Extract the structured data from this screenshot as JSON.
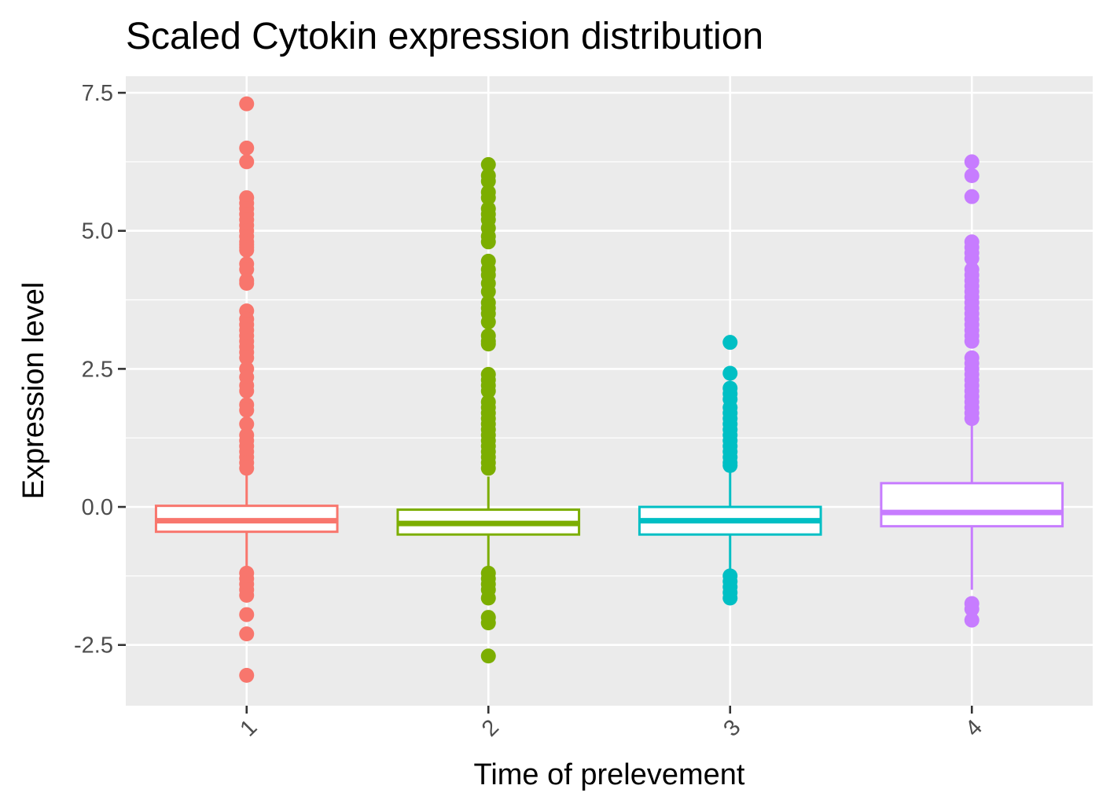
{
  "chart_data": {
    "type": "boxplot",
    "title": "Scaled Cytokin expression distribution",
    "xlabel": "Time of prelevement",
    "ylabel": "Expression level",
    "ylim": [
      -3.6,
      7.8
    ],
    "yticks": [
      -2.5,
      0.0,
      2.5,
      5.0,
      7.5
    ],
    "ytick_labels": [
      "-2.5",
      "0.0",
      "2.5",
      "5.0",
      "7.5"
    ],
    "grid": true,
    "legend": "none",
    "categories": [
      "1",
      "2",
      "3",
      "4"
    ],
    "series": [
      {
        "category": "1",
        "color": "#F8766D",
        "q1": -0.45,
        "median": -0.25,
        "q3": 0.02,
        "whisker_low": -1.1,
        "whisker_high": 0.65,
        "outliers": [
          7.3,
          6.5,
          6.25,
          5.6,
          5.5,
          5.4,
          5.3,
          5.2,
          5.1,
          5.0,
          4.9,
          4.8,
          4.75,
          4.7,
          4.65,
          4.4,
          4.3,
          4.1,
          4.05,
          3.55,
          3.4,
          3.3,
          3.2,
          3.1,
          3.0,
          2.9,
          2.8,
          2.7,
          2.5,
          2.35,
          2.2,
          2.1,
          1.85,
          1.75,
          1.5,
          1.3,
          1.2,
          1.1,
          1.0,
          0.9,
          0.8,
          0.7,
          -1.2,
          -1.3,
          -1.4,
          -1.5,
          -1.6,
          -1.95,
          -2.3,
          -3.05
        ]
      },
      {
        "category": "2",
        "color": "#7CAE00",
        "q1": -0.5,
        "median": -0.3,
        "q3": -0.05,
        "whisker_low": -1.1,
        "whisker_high": 0.55,
        "outliers": [
          6.2,
          6.0,
          5.9,
          5.7,
          5.6,
          5.4,
          5.3,
          5.2,
          5.05,
          4.9,
          4.8,
          4.45,
          4.3,
          4.2,
          4.05,
          3.9,
          3.7,
          3.6,
          3.5,
          3.35,
          3.1,
          3.0,
          2.95,
          2.4,
          2.3,
          2.2,
          2.1,
          1.9,
          1.8,
          1.7,
          1.6,
          1.5,
          1.4,
          1.3,
          1.2,
          1.1,
          1.0,
          0.9,
          0.8,
          0.7,
          -1.2,
          -1.3,
          -1.4,
          -1.5,
          -1.65,
          -2.0,
          -2.1,
          -2.7
        ]
      },
      {
        "category": "3",
        "color": "#00BFC4",
        "q1": -0.5,
        "median": -0.25,
        "q3": 0.0,
        "whisker_low": -1.15,
        "whisker_high": 0.7,
        "outliers": [
          2.98,
          2.42,
          2.15,
          2.05,
          1.95,
          1.8,
          1.7,
          1.6,
          1.5,
          1.4,
          1.3,
          1.2,
          1.1,
          1.0,
          0.9,
          0.8,
          0.75,
          -1.25,
          -1.35,
          -1.45,
          -1.55,
          -1.65
        ]
      },
      {
        "category": "4",
        "color": "#C77CFF",
        "q1": -0.35,
        "median": -0.1,
        "q3": 0.43,
        "whisker_low": -1.5,
        "whisker_high": 1.55,
        "outliers": [
          6.25,
          6.0,
          5.62,
          4.8,
          4.7,
          4.6,
          4.5,
          4.3,
          4.2,
          4.1,
          4.0,
          3.9,
          3.8,
          3.7,
          3.6,
          3.5,
          3.4,
          3.3,
          3.2,
          3.1,
          3.0,
          2.7,
          2.6,
          2.5,
          2.4,
          2.3,
          2.2,
          2.1,
          2.0,
          1.9,
          1.8,
          1.7,
          1.6,
          -1.75,
          -1.85,
          -2.05
        ]
      }
    ]
  }
}
